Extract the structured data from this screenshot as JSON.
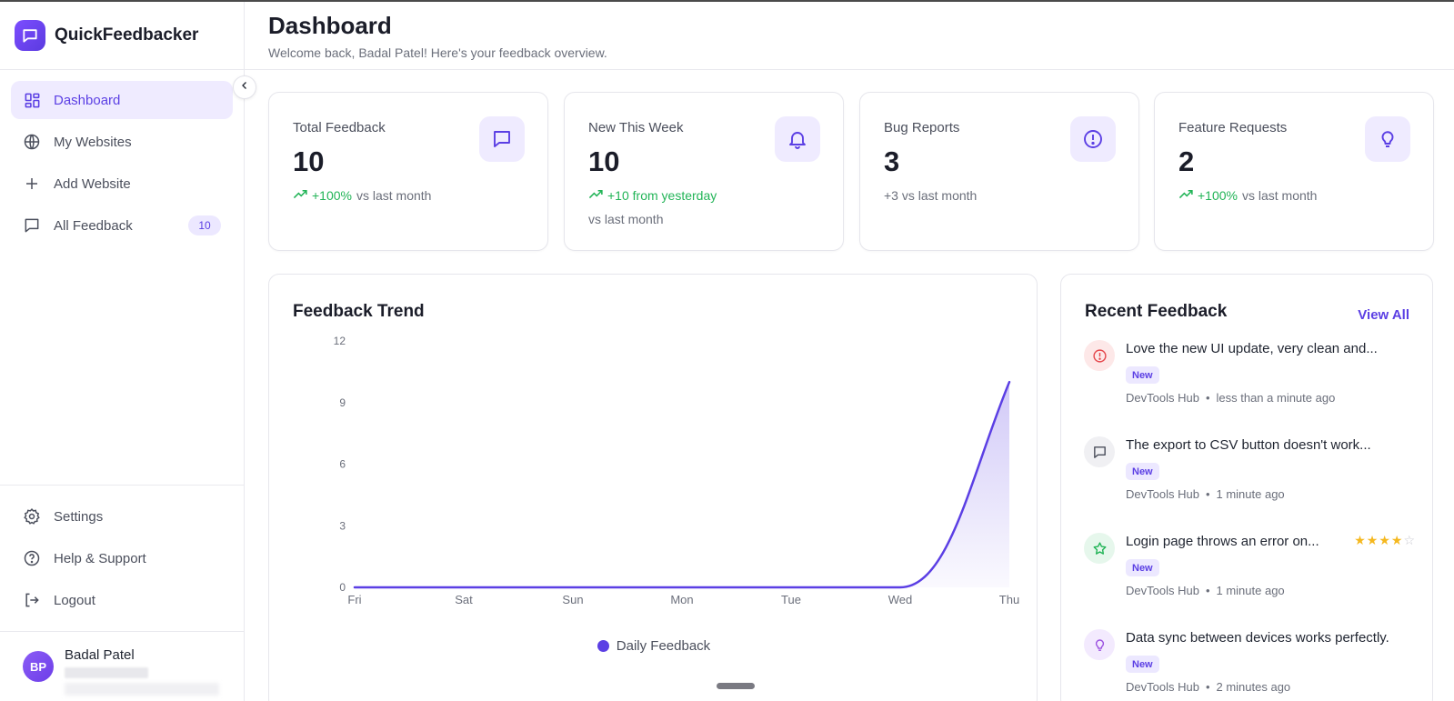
{
  "app": {
    "name": "QuickFeedbacker"
  },
  "header": {
    "title": "Dashboard",
    "subtitle": "Welcome back, Badal Patel! Here's your feedback overview."
  },
  "sidebar": {
    "items": [
      {
        "label": "Dashboard"
      },
      {
        "label": "My Websites"
      },
      {
        "label": "Add Website"
      },
      {
        "label": "All Feedback",
        "badge": "10"
      }
    ],
    "bottom": [
      {
        "label": "Settings"
      },
      {
        "label": "Help & Support"
      },
      {
        "label": "Logout"
      }
    ],
    "user": {
      "initials": "BP",
      "name": "Badal Patel"
    }
  },
  "stats": [
    {
      "label": "Total Feedback",
      "value": "10",
      "trend": "+100%",
      "trend_text": "vs last month"
    },
    {
      "label": "New This Week",
      "value": "10",
      "trend": "+10 from yesterday",
      "trend_text": "vs last month"
    },
    {
      "label": "Bug Reports",
      "value": "3",
      "trend_text": "+3 vs last month"
    },
    {
      "label": "Feature Requests",
      "value": "2",
      "trend": "+100%",
      "trend_text": "vs last month"
    }
  ],
  "chart_panel": {
    "title": "Feedback Trend",
    "legend": "Daily Feedback"
  },
  "chart_data": {
    "type": "area",
    "title": "Feedback Trend",
    "categories": [
      "Fri",
      "Sat",
      "Sun",
      "Mon",
      "Tue",
      "Wed",
      "Thu"
    ],
    "series": [
      {
        "name": "Daily Feedback",
        "values": [
          0,
          0,
          0,
          0,
          0,
          0,
          10
        ]
      }
    ],
    "yticks": [
      0,
      3,
      6,
      9,
      12
    ],
    "ylim": [
      0,
      12
    ],
    "color": "#5b3fe4"
  },
  "recent": {
    "title": "Recent Feedback",
    "view_all": "View All",
    "items": [
      {
        "text": "Love the new UI update, very clean and...",
        "badge": "New",
        "site": "DevTools Hub",
        "time": "less than a minute ago",
        "icon": "alert-circle-icon"
      },
      {
        "text": "The export to CSV button doesn't work...",
        "badge": "New",
        "site": "DevTools Hub",
        "time": "1 minute ago",
        "icon": "message-icon"
      },
      {
        "text": "Login page throws an error on...",
        "badge": "New",
        "site": "DevTools Hub",
        "time": "1 minute ago",
        "icon": "star-icon",
        "rating": 4
      },
      {
        "text": "Data sync between devices works perfectly.",
        "badge": "New",
        "site": "DevTools Hub",
        "time": "2 minutes ago",
        "icon": "lightbulb-icon"
      }
    ]
  },
  "colors": {
    "accent": "#5b3fe4",
    "positive": "#22b457",
    "accent_bg": "#efebff"
  }
}
